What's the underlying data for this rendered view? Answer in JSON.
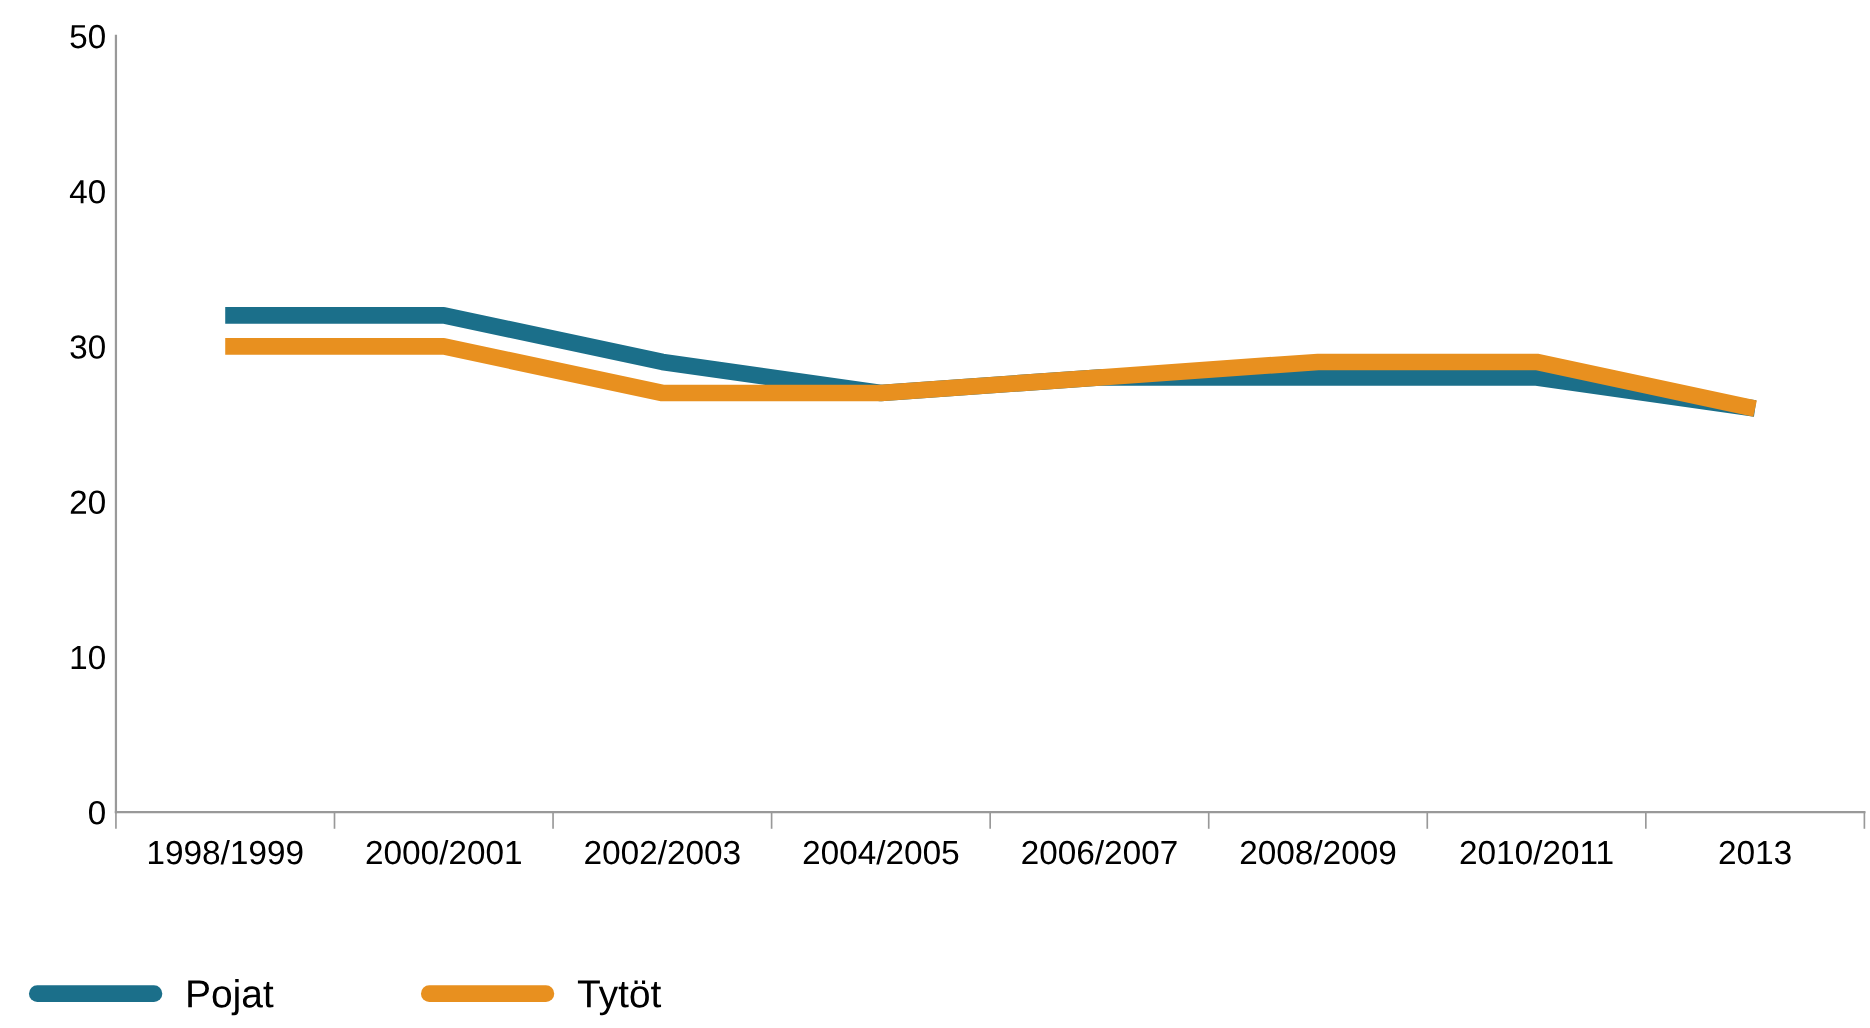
{
  "chart_data": {
    "type": "line",
    "categories": [
      "1998/1999",
      "2000/2001",
      "2002/2003",
      "2004/2005",
      "2006/2007",
      "2008/2009",
      "2010/2011",
      "2013"
    ],
    "series": [
      {
        "name": "Pojat",
        "color": "#1b6f8a",
        "values": [
          32,
          32,
          29,
          27,
          28,
          28,
          28,
          26
        ]
      },
      {
        "name": "Tytöt",
        "color": "#e8901f",
        "values": [
          30,
          30,
          27,
          27,
          28,
          29,
          29,
          26
        ]
      }
    ],
    "ylim": [
      0,
      50
    ],
    "yticks": [
      0,
      10,
      20,
      30,
      40,
      50
    ],
    "grid": false,
    "legend": "bottom left",
    "marker": "none",
    "line_style": "solid"
  }
}
